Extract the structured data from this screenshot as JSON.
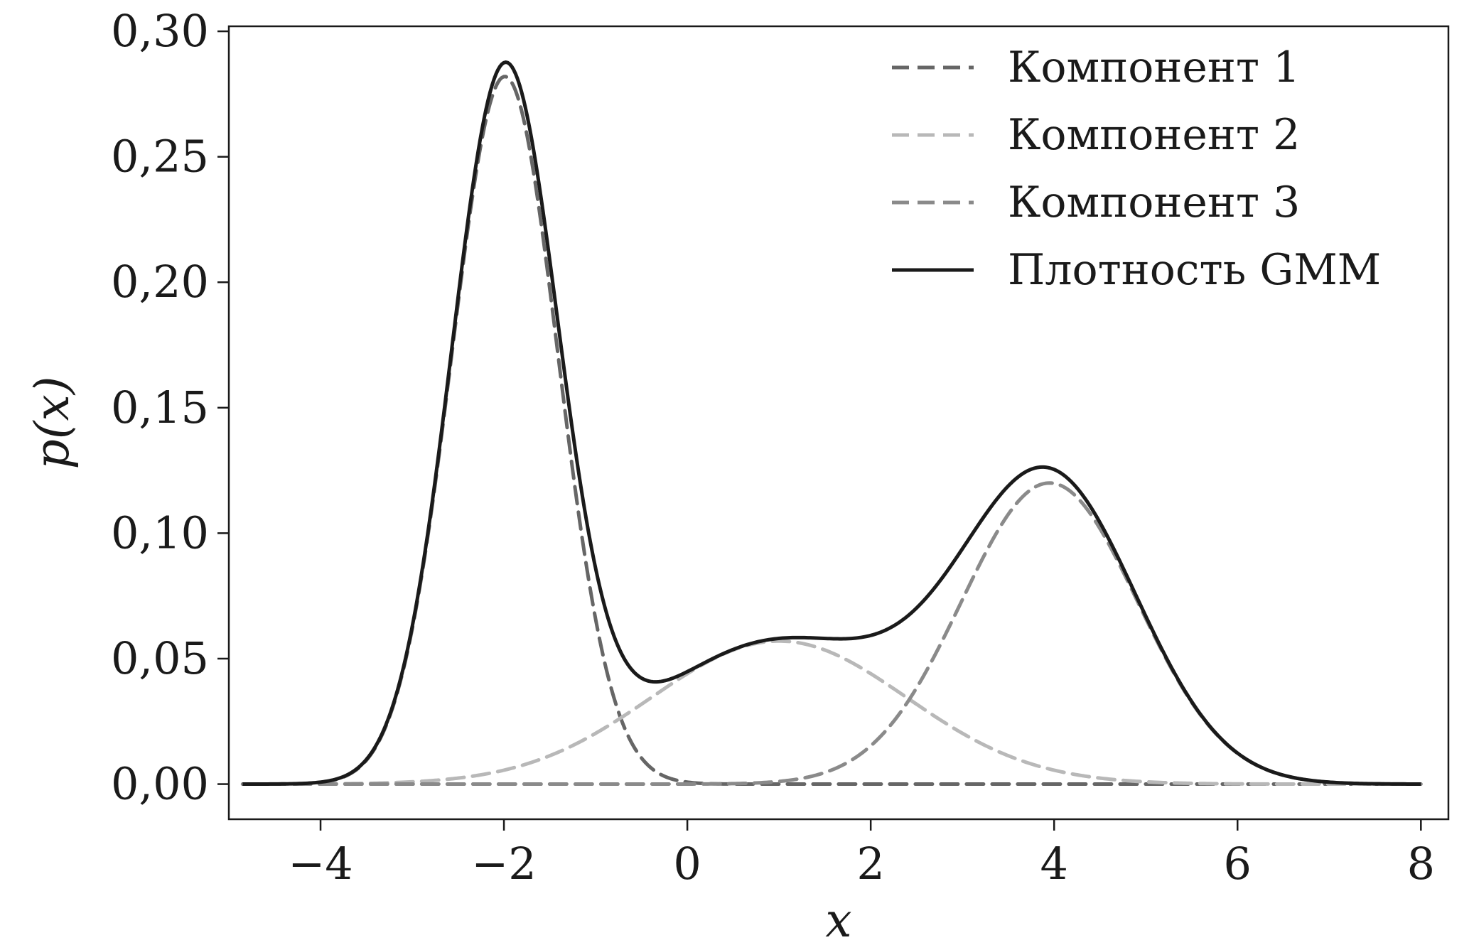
{
  "chart_data": {
    "type": "line",
    "xlabel": "x",
    "ylabel": "p(x)",
    "xlim": [
      -5.0,
      8.3
    ],
    "ylim": [
      -0.014,
      0.302
    ],
    "xticks": [
      -4,
      -2,
      0,
      2,
      4,
      6,
      8
    ],
    "xtick_labels": [
      "−4",
      "−2",
      "0",
      "2",
      "4",
      "6",
      "8"
    ],
    "yticks": [
      0.0,
      0.05,
      0.1,
      0.15,
      0.2,
      0.25,
      0.3
    ],
    "ytick_labels": [
      "0,00",
      "0,05",
      "0,10",
      "0,15",
      "0,20",
      "0,25",
      "0,30"
    ],
    "x_range": [
      -4.85,
      8.0
    ],
    "legend_position": "top-right",
    "grid": false,
    "components": [
      {
        "name": "Компонент 1",
        "mean": -1.99,
        "sd": 0.58,
        "weight": 0.41,
        "peak": 0.282,
        "color": "#666666",
        "dashed": true
      },
      {
        "name": "Компонент 2",
        "mean": 1.0,
        "sd": 1.39,
        "weight": 0.2,
        "peak": 0.057,
        "color": "#b8b8b8",
        "dashed": true
      },
      {
        "name": "Компонент 3",
        "mean": 3.95,
        "sd": 0.96,
        "weight": 0.29,
        "peak": 0.12,
        "color": "#8a8a8a",
        "dashed": true
      }
    ],
    "series": [
      {
        "name": "Компонент 1",
        "color": "#666666",
        "style": "dashed"
      },
      {
        "name": "Компонент 2",
        "color": "#b8b8b8",
        "style": "dashed"
      },
      {
        "name": "Компонент 3",
        "color": "#8a8a8a",
        "style": "dashed"
      },
      {
        "name": "Плотность GMM",
        "color": "#1a1a1a",
        "style": "solid"
      }
    ]
  }
}
